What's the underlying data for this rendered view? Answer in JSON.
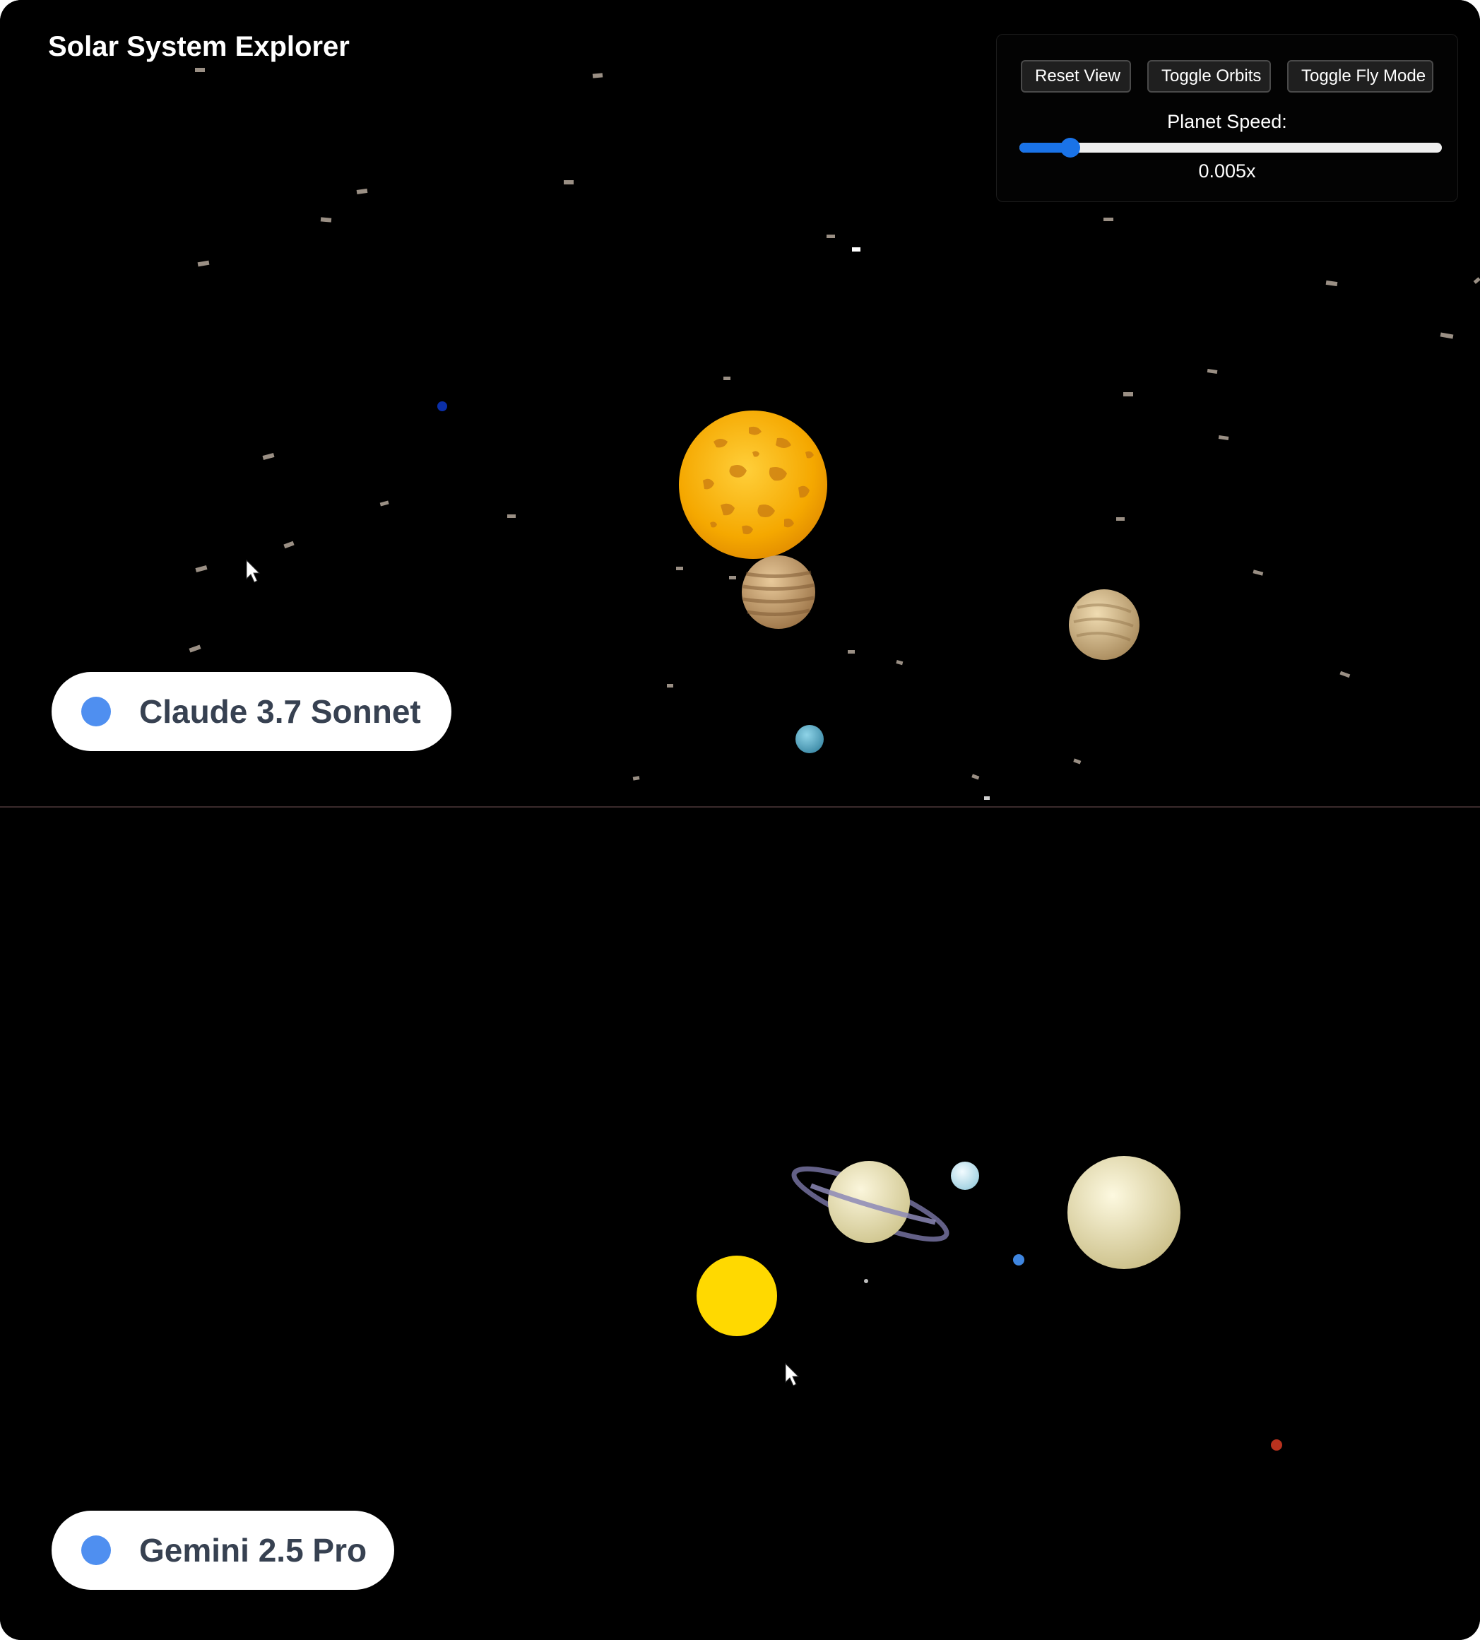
{
  "top_panel": {
    "app_title": "Solar System Explorer",
    "controls": {
      "reset_label": "Reset View",
      "orbits_label": "Toggle Orbits",
      "fly_label": "Toggle Fly Mode",
      "speed_label": "Planet Speed:",
      "speed_value_text": "0.005x",
      "speed_slider_fraction": 0.12,
      "accent_color": "#1a73e8"
    },
    "model_badge": {
      "label": "Claude 3.7 Sonnet",
      "dot_color": "#4f8ff0"
    }
  },
  "bottom_panel": {
    "model_badge": {
      "label": "Gemini 2.5 Pro",
      "dot_color": "#4f8ff0"
    }
  },
  "icons": [
    "cursor-arrow-icon",
    "indicator-dot-icon"
  ]
}
